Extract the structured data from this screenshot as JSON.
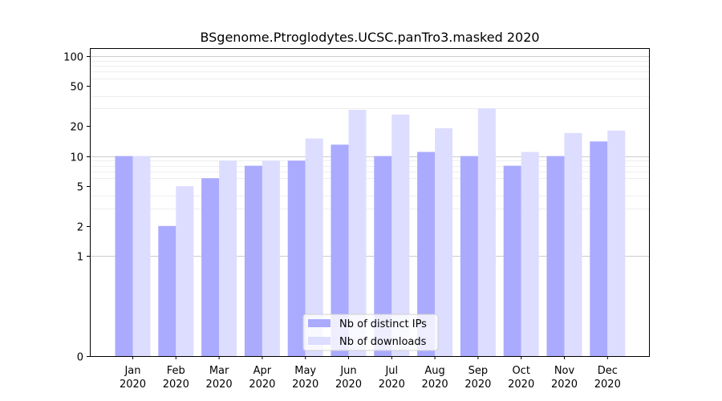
{
  "chart_data": {
    "type": "bar",
    "title": "BSgenome.Ptroglodytes.UCSC.panTro3.masked 2020",
    "xlabel": "",
    "ylabel": "",
    "y_scale": "symlog",
    "ylim": [
      0,
      120
    ],
    "y_ticks": [
      0,
      1,
      2,
      5,
      10,
      20,
      50,
      100
    ],
    "categories": [
      [
        "Jan",
        "2020"
      ],
      [
        "Feb",
        "2020"
      ],
      [
        "Mar",
        "2020"
      ],
      [
        "Apr",
        "2020"
      ],
      [
        "May",
        "2020"
      ],
      [
        "Jun",
        "2020"
      ],
      [
        "Jul",
        "2020"
      ],
      [
        "Aug",
        "2020"
      ],
      [
        "Sep",
        "2020"
      ],
      [
        "Oct",
        "2020"
      ],
      [
        "Nov",
        "2020"
      ],
      [
        "Dec",
        "2020"
      ]
    ],
    "series": [
      {
        "name": "Nb of distinct IPs",
        "color": "#aaaaff",
        "values": [
          10,
          2,
          6,
          8,
          9,
          13,
          10,
          11,
          10,
          8,
          10,
          14
        ]
      },
      {
        "name": "Nb of downloads",
        "color": "#ddddff",
        "values": [
          10,
          5,
          9,
          9,
          15,
          29,
          26,
          19,
          30,
          11,
          17,
          18
        ]
      }
    ],
    "grid": true,
    "legend_position": "bottom-center"
  }
}
